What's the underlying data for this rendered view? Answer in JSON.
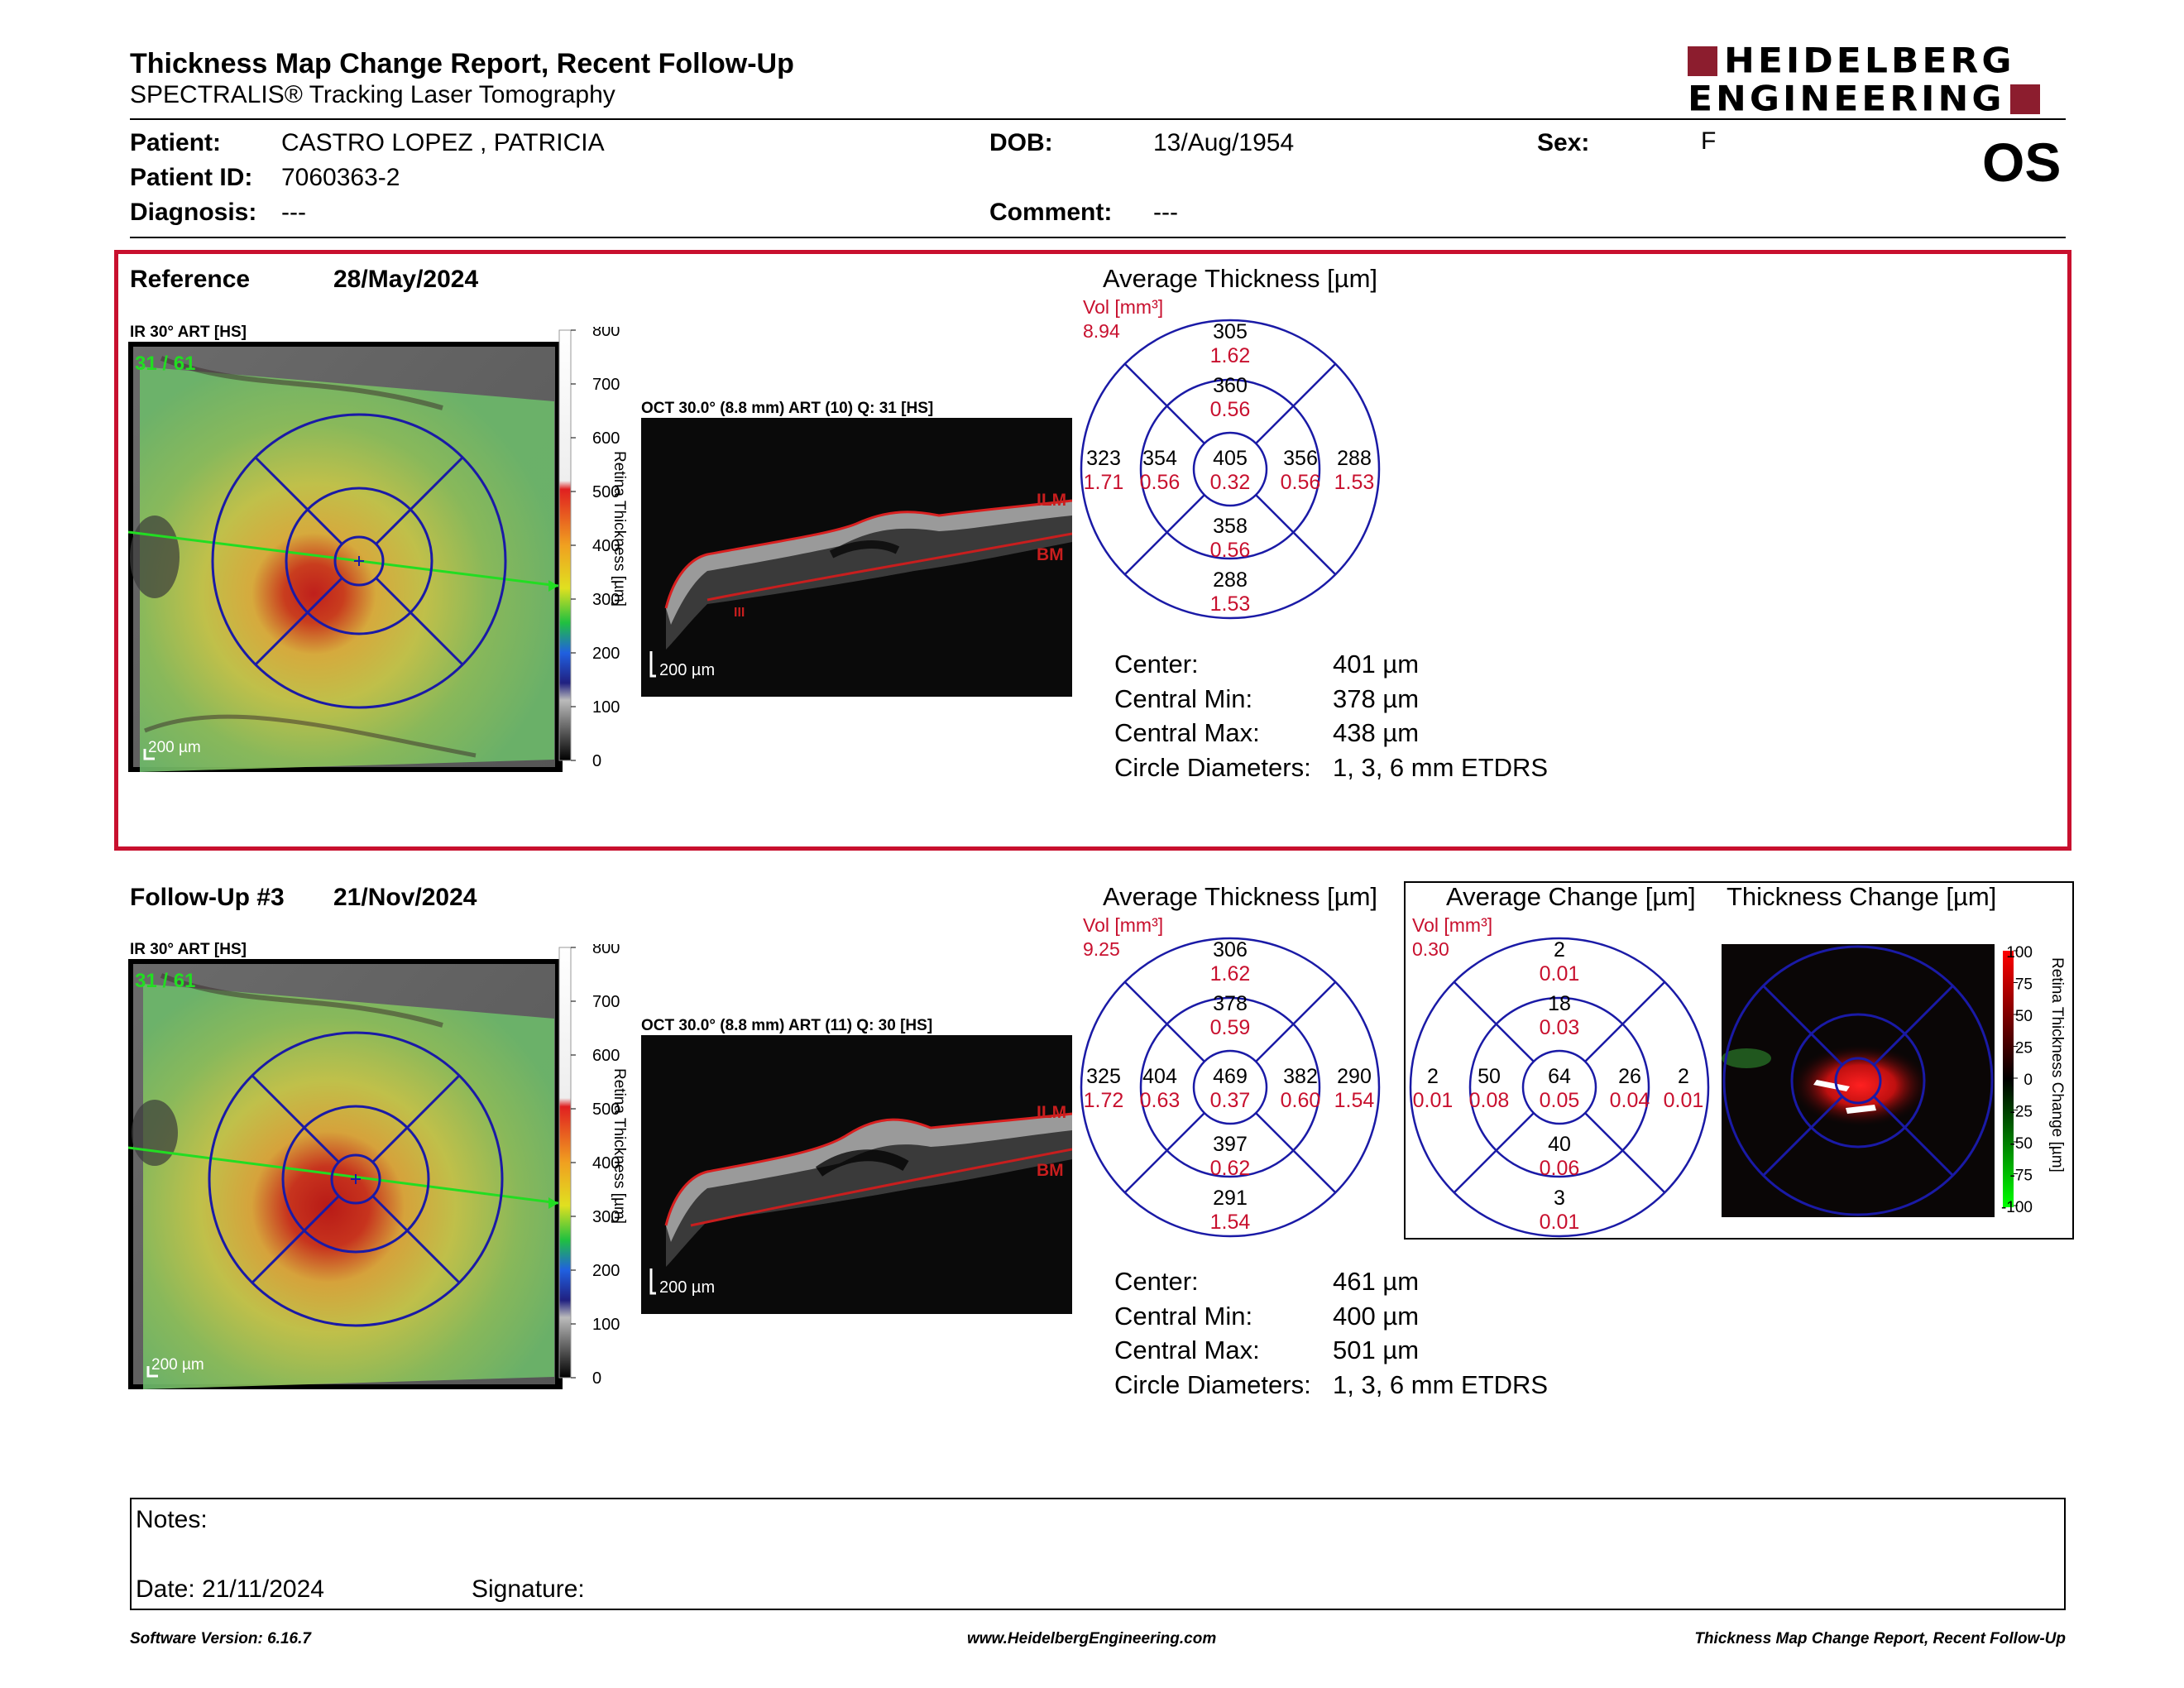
{
  "header": {
    "title": "Thickness Map Change Report, Recent Follow-Up",
    "subtitle": "SPECTRALIS® Tracking Laser Tomography",
    "logo_line1": "HEIDELBERG",
    "logo_line2": "ENGINEERING",
    "eye": "OS"
  },
  "patient": {
    "patient_label": "Patient:",
    "patient_value": "CASTRO LOPEZ , PATRICIA",
    "id_label": "Patient ID:",
    "id_value": "7060363-2",
    "diagnosis_label": "Diagnosis:",
    "diagnosis_value": "---",
    "dob_label": "DOB:",
    "dob_value": "13/Aug/1954",
    "comment_label": "Comment:",
    "comment_value": "---",
    "sex_label": "Sex:",
    "sex_value": "F"
  },
  "reference": {
    "label": "Reference",
    "date": "28/May/2024",
    "ir_label": "IR 30° ART [HS]",
    "ir_overlay": "31 / 61",
    "scale_bar": "200 µm",
    "colorbar_ticks": [
      "800",
      "700",
      "600",
      "500",
      "400",
      "300",
      "200",
      "100",
      "0"
    ],
    "colorbar_label": "Retina Thickness [µm]",
    "oct_label": "OCT 30.0° (8.8 mm) ART (10) Q: 31 [HS]",
    "oct_ilm": "ILM",
    "oct_bm": "BM",
    "oct_misc": "III",
    "oct_scale": "200 µm",
    "avg_title": "Average Thickness [µm]",
    "vol_label": "Vol [mm³]",
    "vol_value": "8.94",
    "sectors": {
      "outer_sup": [
        "305",
        "1.62"
      ],
      "inner_sup": [
        "360",
        "0.56"
      ],
      "outer_temp": [
        "323",
        "1.71"
      ],
      "inner_temp": [
        "354",
        "0.56"
      ],
      "center": [
        "405",
        "0.32"
      ],
      "inner_nas": [
        "356",
        "0.56"
      ],
      "outer_nas": [
        "288",
        "1.53"
      ],
      "inner_inf": [
        "358",
        "0.56"
      ],
      "outer_inf": [
        "288",
        "1.53"
      ]
    },
    "stats": [
      {
        "label": "Center:",
        "value": "401 µm"
      },
      {
        "label": "Central Min:",
        "value": "378 µm"
      },
      {
        "label": "Central Max:",
        "value": "438 µm"
      },
      {
        "label": "Circle Diameters:",
        "value": "1, 3, 6 mm ETDRS"
      }
    ]
  },
  "followup": {
    "label": "Follow-Up #3",
    "date": "21/Nov/2024",
    "ir_label": "IR 30° ART [HS]",
    "ir_overlay": "31 / 61",
    "scale_bar": "200 µm",
    "colorbar_ticks": [
      "800",
      "700",
      "600",
      "500",
      "400",
      "300",
      "200",
      "100",
      "0"
    ],
    "colorbar_label": "Retina Thickness [µm]",
    "oct_label": "OCT 30.0° (8.8 mm) ART (11) Q: 30 [HS]",
    "oct_ilm": "ILM",
    "oct_bm": "BM",
    "oct_scale": "200 µm",
    "avg_title": "Average Thickness [µm]",
    "vol_label": "Vol [mm³]",
    "vol_value": "9.25",
    "sectors": {
      "outer_sup": [
        "306",
        "1.62"
      ],
      "inner_sup": [
        "378",
        "0.59"
      ],
      "outer_temp": [
        "325",
        "1.72"
      ],
      "inner_temp": [
        "404",
        "0.63"
      ],
      "center": [
        "469",
        "0.37"
      ],
      "inner_nas": [
        "382",
        "0.60"
      ],
      "outer_nas": [
        "290",
        "1.54"
      ],
      "inner_inf": [
        "397",
        "0.62"
      ],
      "outer_inf": [
        "291",
        "1.54"
      ]
    },
    "change_title": "Average Change [µm]",
    "change_vol_label": "Vol [mm³]",
    "change_vol_value": "0.30",
    "change_sectors": {
      "outer_sup": [
        "2",
        "0.01"
      ],
      "inner_sup": [
        "18",
        "0.03"
      ],
      "outer_temp": [
        "2",
        "0.01"
      ],
      "inner_temp": [
        "50",
        "0.08"
      ],
      "center": [
        "64",
        "0.05"
      ],
      "inner_nas": [
        "26",
        "0.04"
      ],
      "outer_nas": [
        "2",
        "0.01"
      ],
      "inner_inf": [
        "40",
        "0.06"
      ],
      "outer_inf": [
        "3",
        "0.01"
      ]
    },
    "thickness_change_title": "Thickness Change [µm]",
    "change_ticks": [
      "100",
      "75",
      "50",
      "25",
      "0",
      "-25",
      "-50",
      "-75",
      "-100"
    ],
    "change_bar_label": "Retina Thickness Change [µm]",
    "stats": [
      {
        "label": "Center:",
        "value": "461 µm"
      },
      {
        "label": "Central Min:",
        "value": "400 µm"
      },
      {
        "label": "Central Max:",
        "value": "501 µm"
      },
      {
        "label": "Circle Diameters:",
        "value": "1, 3, 6 mm ETDRS"
      }
    ]
  },
  "notes": {
    "notes_label": "Notes:",
    "date_label": "Date: 21/11/2024",
    "signature_label": "Signature:"
  },
  "footer": {
    "software": "Software Version: 6.16.7",
    "website": "www.HeidelbergEngineering.com",
    "report": "Thickness Map Change Report, Recent Follow-Up"
  },
  "colors": {
    "accent_red": "#c8102e",
    "chart_blue": "#1a1aa6",
    "value_red": "#c8102e",
    "logo": "#8c1d2e"
  }
}
